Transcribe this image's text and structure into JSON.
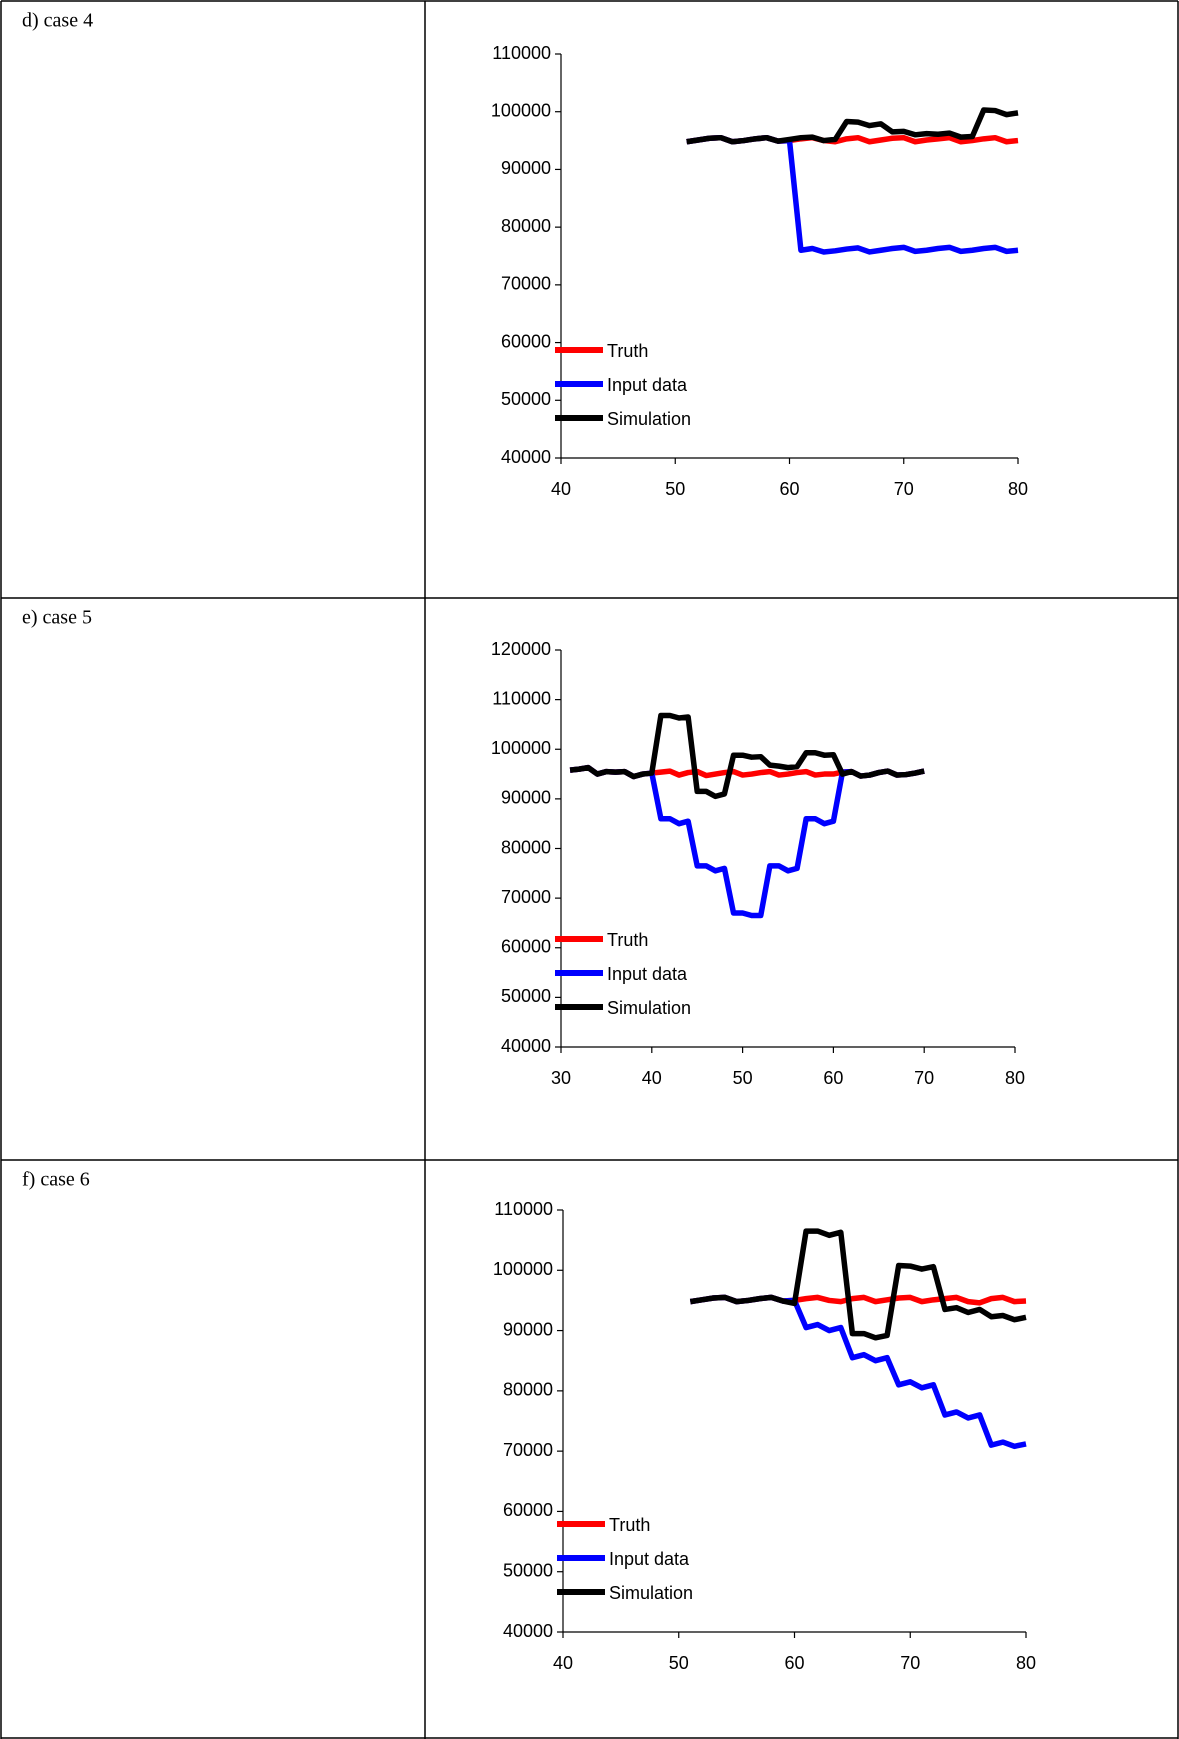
{
  "chart_data": [
    {
      "type": "line",
      "title": "d) case 4",
      "x": [
        51,
        52,
        53,
        54,
        55,
        56,
        57,
        58,
        59,
        60,
        61,
        62,
        63,
        64,
        65,
        66,
        67,
        68,
        69,
        70,
        71,
        72,
        73,
        74,
        75,
        76,
        77,
        78,
        79,
        80
      ],
      "series": [
        {
          "name": "Truth",
          "color": "#ff0000",
          "values": [
            94800,
            95100,
            95400,
            95500,
            94800,
            95000,
            95300,
            95500,
            94900,
            95000,
            95300,
            95500,
            95000,
            94800,
            95300,
            95500,
            94800,
            95100,
            95400,
            95500,
            94800,
            95100,
            95300,
            95500,
            94800,
            95000,
            95300,
            95500,
            94800,
            95000
          ]
        },
        {
          "name": "Input data",
          "color": "#0000ff",
          "values": [
            94800,
            95100,
            95400,
            95500,
            94800,
            95000,
            95300,
            95500,
            94900,
            95000,
            76000,
            76300,
            75700,
            75900,
            76200,
            76400,
            75700,
            76000,
            76300,
            76500,
            75800,
            76000,
            76300,
            76500,
            75800,
            76000,
            76300,
            76500,
            75800,
            76000
          ]
        },
        {
          "name": "Simulation",
          "color": "#000000",
          "values": [
            94800,
            95100,
            95400,
            95500,
            94800,
            95000,
            95300,
            95500,
            94900,
            95200,
            95500,
            95600,
            95000,
            95200,
            98300,
            98200,
            97600,
            97900,
            96500,
            96600,
            96000,
            96200,
            96100,
            96300,
            95600,
            95700,
            100300,
            100200,
            99500,
            99800
          ]
        }
      ],
      "xlim": [
        40,
        80
      ],
      "xticks": [
        40,
        50,
        60,
        70,
        80
      ],
      "ylim": [
        40000,
        110000
      ],
      "yticks": [
        40000,
        50000,
        60000,
        70000,
        80000,
        90000,
        100000,
        110000
      ],
      "legend": "lower left"
    },
    {
      "type": "line",
      "title": "e) case 5",
      "x": [
        31,
        32,
        33,
        34,
        35,
        36,
        37,
        38,
        39,
        40,
        41,
        42,
        43,
        44,
        45,
        46,
        47,
        48,
        49,
        50,
        51,
        52,
        53,
        54,
        55,
        56,
        57,
        58,
        59,
        60,
        61,
        62,
        63,
        64,
        65,
        66,
        67,
        68,
        69,
        70
      ],
      "series": [
        {
          "name": "Truth",
          "color": "#ff0000",
          "values": [
            95800,
            96000,
            96300,
            95000,
            95500,
            95400,
            95500,
            94500,
            95000,
            95200,
            95400,
            95600,
            94800,
            95300,
            95500,
            94700,
            95000,
            95300,
            95500,
            94800,
            95000,
            95300,
            95500,
            94800,
            95000,
            95300,
            95500,
            94800,
            95000,
            95000,
            95400,
            95500,
            94600,
            94800,
            95300,
            95600,
            94800,
            94900,
            95200,
            95600
          ]
        },
        {
          "name": "Input data",
          "color": "#0000ff",
          "values": [
            95800,
            96000,
            96300,
            95000,
            95500,
            95400,
            95500,
            94500,
            95000,
            95200,
            86000,
            86000,
            85000,
            85500,
            76500,
            76500,
            75500,
            76000,
            67000,
            67000,
            66500,
            66500,
            76500,
            76500,
            75500,
            76000,
            86000,
            86000,
            85000,
            85500,
            95400,
            95500,
            94600,
            94800,
            95300,
            95600,
            94800,
            94900,
            95200,
            95600
          ]
        },
        {
          "name": "Simulation",
          "color": "#000000",
          "values": [
            95800,
            96000,
            96300,
            95000,
            95500,
            95400,
            95500,
            94500,
            95000,
            95200,
            106800,
            106800,
            106300,
            106500,
            91500,
            91500,
            90500,
            91000,
            98800,
            98800,
            98400,
            98500,
            96800,
            96600,
            96300,
            96500,
            99300,
            99300,
            98800,
            98900,
            95000,
            95500,
            94600,
            94800,
            95300,
            95600,
            94800,
            94900,
            95200,
            95600
          ]
        }
      ],
      "xlim": [
        30,
        80
      ],
      "xticks": [
        30,
        40,
        50,
        60,
        70,
        80
      ],
      "ylim": [
        40000,
        120000
      ],
      "yticks": [
        40000,
        50000,
        60000,
        70000,
        80000,
        90000,
        100000,
        110000,
        120000
      ],
      "legend": "lower left"
    },
    {
      "type": "line",
      "title": "f) case 6",
      "x": [
        51,
        52,
        53,
        54,
        55,
        56,
        57,
        58,
        59,
        60,
        61,
        62,
        63,
        64,
        65,
        66,
        67,
        68,
        69,
        70,
        71,
        72,
        73,
        74,
        75,
        76,
        77,
        78,
        79,
        80
      ],
      "series": [
        {
          "name": "Truth",
          "color": "#ff0000",
          "values": [
            94800,
            95100,
            95400,
            95500,
            94800,
            95000,
            95300,
            95500,
            94900,
            95000,
            95300,
            95500,
            95000,
            94800,
            95300,
            95500,
            94800,
            95100,
            95400,
            95500,
            94800,
            95100,
            95300,
            95500,
            94800,
            94600,
            95300,
            95500,
            94800,
            94900
          ]
        },
        {
          "name": "Input data",
          "color": "#0000ff",
          "values": [
            94800,
            95100,
            95400,
            95500,
            94800,
            95000,
            95300,
            95500,
            94900,
            95000,
            90500,
            91000,
            90000,
            90500,
            85500,
            86000,
            85000,
            85500,
            81000,
            81500,
            80500,
            81000,
            76000,
            76500,
            75500,
            76000,
            71000,
            71500,
            70800,
            71200
          ]
        },
        {
          "name": "Simulation",
          "color": "#000000",
          "values": [
            94800,
            95100,
            95400,
            95500,
            94800,
            95000,
            95300,
            95500,
            94900,
            94500,
            106500,
            106500,
            105800,
            106300,
            89500,
            89500,
            88800,
            89200,
            100800,
            100700,
            100200,
            100600,
            93500,
            93800,
            93000,
            93500,
            92300,
            92500,
            91800,
            92200
          ]
        }
      ],
      "xlim": [
        40,
        80
      ],
      "xticks": [
        40,
        50,
        60,
        70,
        80
      ],
      "ylim": [
        40000,
        110000
      ],
      "yticks": [
        40000,
        50000,
        60000,
        70000,
        80000,
        90000,
        100000,
        110000
      ],
      "legend": "lower left"
    }
  ]
}
